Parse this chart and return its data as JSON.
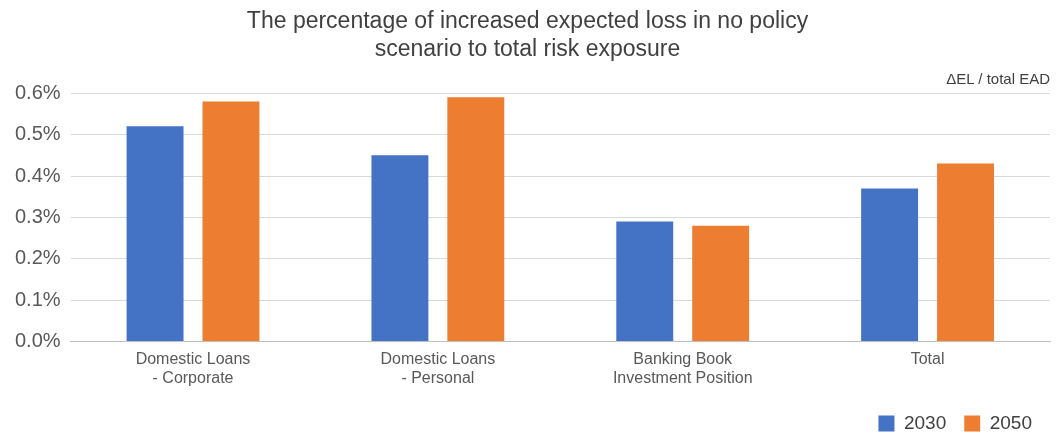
{
  "chart_data": {
    "type": "bar",
    "title": "The percentage of increased expected loss in no policy scenario to total risk exposure",
    "categories": [
      "Domestic Loans\n- Corporate",
      "Domestic Loans\n- Personal",
      "Banking Book\nInvestment Position",
      "Total"
    ],
    "series": [
      {
        "name": "2030",
        "color": "#4472c4",
        "values": [
          0.52,
          0.45,
          0.29,
          0.37
        ]
      },
      {
        "name": "2050",
        "color": "#ed7d31",
        "values": [
          0.58,
          0.59,
          0.28,
          0.43
        ]
      }
    ],
    "ylim": [
      0,
      0.6
    ],
    "yticks": [
      {
        "value": 0,
        "label": "0.0%"
      },
      {
        "value": 0.1,
        "label": "0.1%"
      },
      {
        "value": 0.2,
        "label": "0.2%"
      },
      {
        "value": 0.3,
        "label": "0.3%"
      },
      {
        "value": 0.4,
        "label": "0.4%"
      },
      {
        "value": 0.5,
        "label": "0.5%"
      },
      {
        "value": 0.6,
        "label": "0.6%"
      }
    ],
    "grid": "y",
    "legend": "bottom right",
    "annotations": [
      "ΔEL / total EAD"
    ]
  }
}
